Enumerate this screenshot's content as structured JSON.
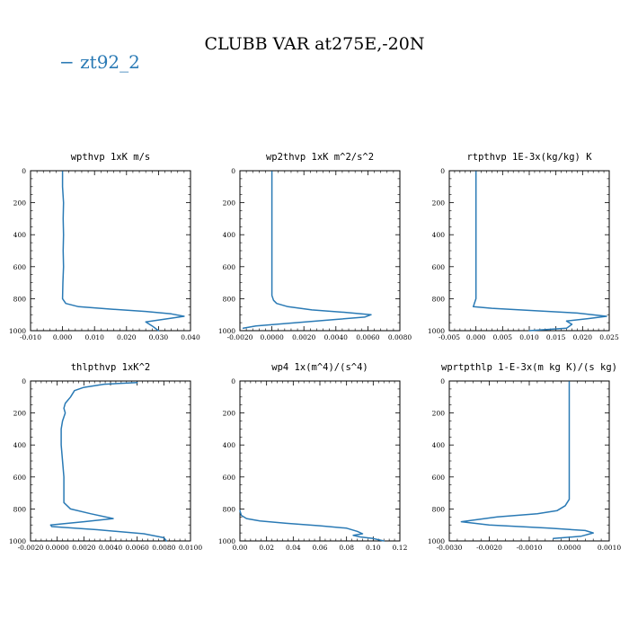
{
  "title": "CLUBB VAR at275E,-20N",
  "legend": {
    "label": "− zt92_2",
    "color": "#2a7ab5"
  },
  "line_color": "#2a7ab5",
  "chart_data": [
    {
      "type": "line",
      "title": "wpthvp   1xK m/s",
      "xlim": [
        -0.01,
        0.04
      ],
      "xticks": [
        -0.01,
        0.0,
        0.01,
        0.02,
        0.03,
        0.04
      ],
      "xticklabels": [
        "-0.010",
        "0.000",
        "0.010",
        "0.020",
        "0.030",
        "0.040"
      ],
      "ylim": [
        1000,
        0
      ],
      "yticks": [
        0,
        200,
        400,
        600,
        800,
        1000
      ],
      "series": [
        {
          "name": "zt92_2",
          "x": [
            0.0,
            0.0,
            0.0003,
            0.0002,
            0.0003,
            0.0002,
            0.0003,
            0.0001,
            0.0,
            0.001,
            0.005,
            0.015,
            0.026,
            0.034,
            0.038,
            0.033,
            0.026,
            0.028,
            0.03
          ],
          "y": [
            5,
            100,
            200,
            300,
            400,
            500,
            600,
            700,
            800,
            830,
            850,
            865,
            880,
            895,
            910,
            925,
            945,
            970,
            1000
          ]
        }
      ]
    },
    {
      "type": "line",
      "title": "wp2thvp   1xK m^2/s^2",
      "xlim": [
        -0.002,
        0.008
      ],
      "xticks": [
        -0.002,
        0.0,
        0.002,
        0.004,
        0.006,
        0.008
      ],
      "xticklabels": [
        "-0.0020",
        "0.0000",
        "0.0020",
        "0.0040",
        "0.0060",
        "0.0080"
      ],
      "ylim": [
        1000,
        0
      ],
      "yticks": [
        0,
        200,
        400,
        600,
        800,
        1000
      ],
      "series": [
        {
          "name": "zt92_2",
          "x": [
            0.0,
            0.0,
            0.0,
            0.0,
            0.0,
            0.0001,
            0.0003,
            0.001,
            0.0025,
            0.0045,
            0.0062,
            0.0058,
            0.004,
            0.0015,
            -0.001,
            -0.0018
          ],
          "y": [
            5,
            200,
            400,
            600,
            780,
            810,
            830,
            850,
            870,
            885,
            900,
            915,
            930,
            950,
            970,
            985
          ]
        }
      ]
    },
    {
      "type": "line",
      "title": "rtpthvp   1E-3x(kg/kg) K",
      "xlim": [
        -0.005,
        0.025
      ],
      "xticks": [
        -0.005,
        0.0,
        0.005,
        0.01,
        0.015,
        0.02,
        0.025
      ],
      "xticklabels": [
        "-0.005",
        "0.000",
        "0.005",
        "0.010",
        "0.015",
        "0.020",
        "0.025"
      ],
      "ylim": [
        1000,
        0
      ],
      "yticks": [
        0,
        200,
        400,
        600,
        800,
        1000
      ],
      "series": [
        {
          "name": "zt92_2",
          "x": [
            0.0,
            0.0,
            0.0,
            0.0,
            0.0,
            0.0,
            -0.0003,
            -0.0005,
            0.003,
            0.011,
            0.019,
            0.0245,
            0.021,
            0.017,
            0.018,
            0.017,
            0.01
          ],
          "y": [
            5,
            200,
            400,
            600,
            700,
            800,
            830,
            850,
            860,
            875,
            890,
            910,
            925,
            940,
            960,
            985,
            1000
          ]
        }
      ]
    },
    {
      "type": "line",
      "title": "thlpthvp   1xK^2",
      "xlim": [
        -0.002,
        0.01
      ],
      "xticks": [
        -0.002,
        0.0,
        0.002,
        0.004,
        0.006,
        0.008,
        0.01
      ],
      "xticklabels": [
        "-0.0020",
        "0.0000",
        "0.0020",
        "0.0040",
        "0.0060",
        "0.0080",
        "0.0100"
      ],
      "ylim": [
        1000,
        0
      ],
      "yticks": [
        0,
        200,
        400,
        600,
        800,
        1000
      ],
      "series": [
        {
          "name": "zt92_2",
          "x": [
            0.006,
            0.0035,
            0.002,
            0.0013,
            0.001,
            0.0008,
            0.0006,
            0.0005,
            0.0006,
            0.0004,
            0.0003,
            0.0003,
            0.0004,
            0.0005,
            0.0005,
            0.001,
            0.0025,
            0.0042,
            0.002,
            -0.0005,
            -0.0004,
            0.003,
            0.0065,
            0.008,
            0.0082
          ],
          "y": [
            10,
            20,
            40,
            60,
            100,
            120,
            140,
            170,
            200,
            250,
            300,
            400,
            500,
            600,
            760,
            800,
            830,
            860,
            880,
            900,
            910,
            930,
            955,
            980,
            1000
          ]
        }
      ]
    },
    {
      "type": "line",
      "title": "wp4   1x(m^4)/(s^4)",
      "xlim": [
        0.0,
        0.12
      ],
      "xticks": [
        0.0,
        0.02,
        0.04,
        0.06,
        0.08,
        0.1,
        0.12
      ],
      "xticklabels": [
        "0.00",
        "0.02",
        "0.04",
        "0.06",
        "0.08",
        "0.10",
        "0.12"
      ],
      "ylim": [
        1000,
        0
      ],
      "yticks": [
        0,
        200,
        400,
        600,
        800,
        1000
      ],
      "series": [
        {
          "name": "zt92_2",
          "x": [
            0.0,
            0.001,
            0.005,
            0.015,
            0.035,
            0.06,
            0.08,
            0.088,
            0.092,
            0.085,
            0.09,
            0.1,
            0.108
          ],
          "y": [
            810,
            840,
            860,
            875,
            890,
            905,
            920,
            940,
            955,
            965,
            975,
            985,
            1000
          ]
        }
      ]
    },
    {
      "type": "line",
      "title": "wprtpthlp   1-E-3x(m kg K)/(s kg)",
      "xlim": [
        -0.003,
        0.001
      ],
      "xticks": [
        -0.003,
        -0.002,
        -0.001,
        0.0,
        0.001
      ],
      "xticklabels": [
        "-0.0030",
        "-0.0020",
        "-0.0010",
        "0.0000",
        "0.0010"
      ],
      "ylim": [
        1000,
        0
      ],
      "yticks": [
        0,
        200,
        400,
        600,
        800,
        1000
      ],
      "series": [
        {
          "name": "zt92_2",
          "x": [
            0.0,
            0.0,
            0.0,
            0.0,
            0.0,
            -0.0001,
            -0.0003,
            -0.0008,
            -0.0018,
            -0.0027,
            -0.002,
            -0.0005,
            0.0004,
            0.0006,
            0.0003,
            -0.0004
          ],
          "y": [
            5,
            200,
            400,
            600,
            740,
            780,
            810,
            830,
            850,
            880,
            900,
            920,
            935,
            950,
            970,
            985
          ]
        }
      ]
    }
  ]
}
